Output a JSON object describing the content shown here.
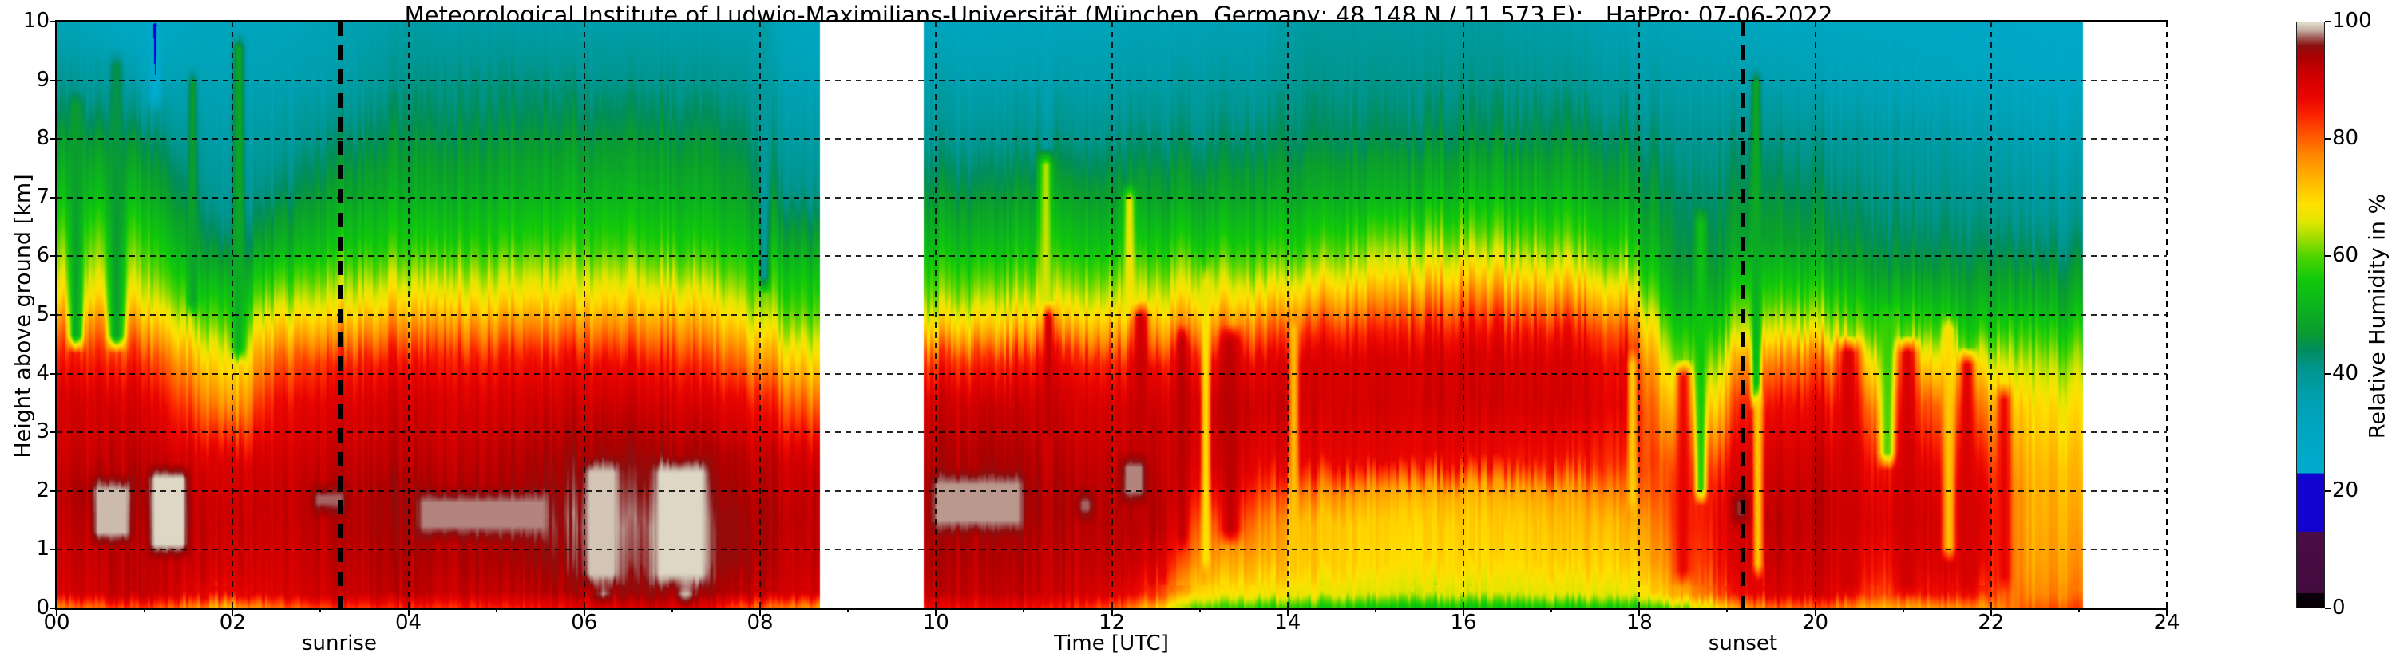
{
  "figure": {
    "title": "Meteorological Institute of Ludwig-Maximilians-Universität (München, Germany; 48.148 N / 11.573 E):   HatPro: 07-06-2022"
  },
  "axes": {
    "xlabel": "Time [UTC]",
    "ylabel": "Height above ground [km]",
    "x_range": [
      0,
      24
    ],
    "y_range": [
      0,
      10
    ],
    "x_ticks": [
      {
        "t": 0,
        "label": "00"
      },
      {
        "t": 2,
        "label": "02"
      },
      {
        "t": 4,
        "label": "04"
      },
      {
        "t": 6,
        "label": "06"
      },
      {
        "t": 8,
        "label": "08"
      },
      {
        "t": 10,
        "label": "10"
      },
      {
        "t": 12,
        "label": "12"
      },
      {
        "t": 14,
        "label": "14"
      },
      {
        "t": 16,
        "label": "16"
      },
      {
        "t": 18,
        "label": "18"
      },
      {
        "t": 20,
        "label": "20"
      },
      {
        "t": 22,
        "label": "22"
      },
      {
        "t": 24,
        "label": "24"
      }
    ],
    "x_minor_ticks": [
      1,
      3,
      5,
      7,
      9,
      11,
      13,
      15,
      17,
      19,
      21,
      23
    ],
    "y_ticks": [
      {
        "h": 0,
        "label": "0"
      },
      {
        "h": 1,
        "label": "1"
      },
      {
        "h": 2,
        "label": "2"
      },
      {
        "h": 3,
        "label": "3"
      },
      {
        "h": 4,
        "label": "4"
      },
      {
        "h": 5,
        "label": "5"
      },
      {
        "h": 6,
        "label": "6"
      },
      {
        "h": 7,
        "label": "7"
      },
      {
        "h": 8,
        "label": "8"
      },
      {
        "h": 9,
        "label": "9"
      },
      {
        "h": 10,
        "label": "10"
      }
    ],
    "grid": {
      "vertical_every_hours": 2,
      "horizontal_every_km": 1,
      "style": "dashed-black"
    }
  },
  "annotations": {
    "sunrise": {
      "label": "sunrise",
      "t": 3.22
    },
    "sunset": {
      "label": "sunset",
      "t": 19.18
    }
  },
  "colorbar": {
    "label": "Relative Humidity in %",
    "range": [
      0,
      100
    ],
    "ticks": [
      {
        "v": 0,
        "label": "0"
      },
      {
        "v": 20,
        "label": "20"
      },
      {
        "v": 40,
        "label": "40"
      },
      {
        "v": 60,
        "label": "60"
      },
      {
        "v": 80,
        "label": "80"
      },
      {
        "v": 100,
        "label": "100"
      }
    ]
  },
  "chart_data": {
    "type": "heatmap",
    "title": "Meteorological Institute of Ludwig-Maximilians-Universität (München, Germany; 48.148 N / 11.573 E):   HatPro: 07-06-2022",
    "xlabel": "Time [UTC]",
    "ylabel": "Height above ground [km]",
    "value_label": "Relative Humidity in %",
    "x_range": [
      0,
      24
    ],
    "y_range": [
      0,
      10
    ],
    "value_range": [
      0,
      100
    ],
    "data_start": 0.0,
    "data_end": 23.05,
    "gap": [
      8.68,
      9.86
    ],
    "sunrise_utc": 3.22,
    "sunset_utc": 19.18,
    "colormap_stops": [
      [
        0,
        "#050005"
      ],
      [
        2.4,
        "#0a000a"
      ],
      [
        2.5,
        "#420b3e"
      ],
      [
        12.9,
        "#4b0d45"
      ],
      [
        13,
        "#1203cf"
      ],
      [
        22.9,
        "#1203cf"
      ],
      [
        23,
        "#00abcd"
      ],
      [
        30,
        "#00a6c2"
      ],
      [
        36,
        "#009fae"
      ],
      [
        41,
        "#00958d"
      ],
      [
        44,
        "#008d5c"
      ],
      [
        47,
        "#0a9c2f"
      ],
      [
        52,
        "#0cb61c"
      ],
      [
        56,
        "#10c90a"
      ],
      [
        60,
        "#4ed400"
      ],
      [
        63,
        "#9cdd00"
      ],
      [
        66,
        "#e3e600"
      ],
      [
        69,
        "#ffe000"
      ],
      [
        73,
        "#ffb600"
      ],
      [
        77,
        "#ff8a00"
      ],
      [
        81,
        "#ff5200"
      ],
      [
        84,
        "#fb2500"
      ],
      [
        87,
        "#ea0500"
      ],
      [
        91,
        "#ce0000"
      ],
      [
        94,
        "#aa0000"
      ],
      [
        96,
        "#8d0f0f"
      ],
      [
        97.3,
        "#9e5555"
      ],
      [
        98.6,
        "#c3ac9f"
      ],
      [
        100,
        "#e2decb"
      ]
    ],
    "heights_km": [
      0,
      0.25,
      0.75,
      1.5,
      2,
      2.5,
      3.5,
      4.25,
      4.75,
      5.25,
      5.75,
      6.25,
      7,
      8,
      9,
      10
    ],
    "samples": [
      {
        "t": 0.0,
        "rh": [
          78,
          90,
          91,
          92,
          92,
          91,
          90,
          85,
          78,
          70,
          65,
          61,
          54,
          47,
          40,
          34
        ]
      },
      {
        "t": 0.5,
        "rh": [
          80,
          91,
          92,
          93,
          95,
          92,
          90,
          84,
          77,
          69,
          64,
          60,
          53,
          46,
          38,
          31
        ]
      },
      {
        "t": 1.0,
        "rh": [
          82,
          92,
          92,
          93,
          94,
          92,
          89,
          83,
          75,
          67,
          62,
          58,
          51,
          44,
          34,
          27
        ]
      },
      {
        "t": 1.6,
        "rh": [
          76,
          88,
          91,
          92,
          91,
          90,
          80,
          72,
          64,
          58,
          52,
          47,
          42,
          38,
          34,
          31
        ]
      },
      {
        "t": 2.0,
        "rh": [
          72,
          87,
          90,
          91,
          90,
          89,
          74,
          66,
          60,
          54,
          48,
          42,
          38,
          36,
          33,
          31
        ]
      },
      {
        "t": 2.5,
        "rh": [
          80,
          90,
          91,
          92,
          92,
          91,
          87,
          80,
          72,
          64,
          57,
          50,
          44,
          39,
          35,
          32
        ]
      },
      {
        "t": 3.2,
        "rh": [
          82,
          91,
          92,
          93,
          93,
          92,
          89,
          84,
          75,
          67,
          61,
          55,
          49,
          43,
          37,
          34
        ]
      },
      {
        "t": 4.0,
        "rh": [
          84,
          92,
          93,
          94,
          94,
          92,
          90,
          85,
          77,
          69,
          62,
          56,
          50,
          45,
          41,
          37
        ]
      },
      {
        "t": 5.0,
        "rh": [
          85,
          92,
          94,
          95,
          94,
          93,
          90,
          85,
          77,
          69,
          63,
          57,
          51,
          46,
          42,
          37
        ]
      },
      {
        "t": 6.2,
        "rh": [
          88,
          94,
          96,
          97,
          96,
          95,
          91,
          86,
          78,
          70,
          64,
          58,
          52,
          46,
          41,
          36
        ]
      },
      {
        "t": 7.2,
        "rh": [
          90,
          95,
          97,
          97,
          96,
          95,
          90,
          84,
          77,
          70,
          63,
          57,
          51,
          46,
          41,
          36
        ]
      },
      {
        "t": 7.9,
        "rh": [
          80,
          92,
          94,
          94,
          93,
          92,
          86,
          76,
          68,
          62,
          57,
          52,
          47,
          43,
          39,
          35
        ]
      },
      {
        "t": 8.4,
        "rh": [
          78,
          91,
          92,
          93,
          92,
          91,
          80,
          70,
          63,
          58,
          54,
          48,
          42,
          38,
          34,
          31
        ]
      },
      {
        "t": 8.68,
        "rh": [
          76,
          90,
          92,
          92,
          92,
          90,
          78,
          68,
          62,
          57,
          53,
          47,
          41,
          37,
          33,
          30
        ]
      },
      {
        "t": 9.87,
        "rh": [
          86,
          92,
          93,
          94,
          94,
          93,
          90,
          82,
          70,
          62,
          57,
          52,
          46,
          40,
          36,
          31
        ]
      },
      {
        "t": 10.6,
        "rh": [
          87,
          92,
          93,
          95,
          95,
          94,
          91,
          83,
          72,
          64,
          58,
          52,
          46,
          40,
          35,
          31
        ]
      },
      {
        "t": 11.5,
        "rh": [
          85,
          91,
          92,
          93,
          93,
          92,
          90,
          85,
          74,
          65,
          59,
          54,
          48,
          41,
          36,
          32
        ]
      },
      {
        "t": 12.1,
        "rh": [
          80,
          89,
          92,
          93,
          93,
          92,
          90,
          84,
          74,
          66,
          60,
          54,
          48,
          42,
          37,
          33
        ]
      },
      {
        "t": 12.6,
        "rh": [
          68,
          80,
          87,
          92,
          92,
          91,
          90,
          85,
          75,
          67,
          61,
          55,
          48,
          42,
          37,
          33
        ]
      },
      {
        "t": 13.1,
        "rh": [
          58,
          68,
          74,
          80,
          86,
          90,
          91,
          86,
          77,
          68,
          62,
          55,
          48,
          42,
          38,
          34
        ]
      },
      {
        "t": 13.6,
        "rh": [
          57,
          68,
          73,
          79,
          84,
          88,
          91,
          87,
          79,
          70,
          62,
          56,
          49,
          43,
          38,
          34
        ]
      },
      {
        "t": 14.2,
        "rh": [
          56,
          67,
          71,
          72,
          78,
          87,
          90,
          89,
          83,
          73,
          64,
          57,
          50,
          44,
          41,
          38
        ]
      },
      {
        "t": 15.1,
        "rh": [
          55,
          66,
          70,
          71,
          75,
          88,
          91,
          90,
          85,
          77,
          68,
          62,
          52,
          45,
          41,
          38
        ]
      },
      {
        "t": 16.2,
        "rh": [
          55,
          66,
          70,
          71,
          74,
          87,
          91,
          90,
          86,
          78,
          69,
          62,
          53,
          45,
          41,
          38
        ]
      },
      {
        "t": 17.2,
        "rh": [
          55,
          66,
          70,
          72,
          75,
          85,
          90,
          89,
          85,
          76,
          67,
          60,
          52,
          45,
          40,
          36
        ]
      },
      {
        "t": 17.9,
        "rh": [
          56,
          67,
          71,
          74,
          79,
          84,
          88,
          86,
          80,
          71,
          63,
          56,
          49,
          44,
          38,
          34
        ]
      },
      {
        "t": 18.4,
        "rh": [
          60,
          73,
          78,
          81,
          82,
          80,
          70,
          62,
          57,
          52,
          48,
          46,
          44,
          41,
          37,
          33
        ]
      },
      {
        "t": 18.9,
        "rh": [
          68,
          81,
          85,
          87,
          86,
          82,
          70,
          62,
          56,
          51,
          47,
          45,
          43,
          40,
          36,
          32
        ]
      },
      {
        "t": 19.15,
        "rh": [
          76,
          87,
          90,
          91,
          91,
          90,
          85,
          76,
          66,
          60,
          54,
          49,
          46,
          42,
          36,
          31
        ]
      },
      {
        "t": 19.6,
        "rh": [
          79,
          89,
          91,
          92,
          91,
          90,
          86,
          77,
          66,
          59,
          53,
          48,
          45,
          41,
          35,
          30
        ]
      },
      {
        "t": 20.1,
        "rh": [
          80,
          90,
          91,
          92,
          92,
          91,
          87,
          79,
          66,
          59,
          52,
          47,
          44,
          40,
          34,
          30
        ]
      },
      {
        "t": 20.7,
        "rh": [
          73,
          82,
          86,
          89,
          88,
          86,
          78,
          68,
          60,
          54,
          48,
          45,
          42,
          39,
          33,
          30
        ]
      },
      {
        "t": 21.3,
        "rh": [
          76,
          87,
          90,
          91,
          90,
          88,
          81,
          69,
          60,
          53,
          47,
          44,
          41,
          38,
          32,
          29
        ]
      },
      {
        "t": 21.9,
        "rh": [
          75,
          84,
          88,
          89,
          88,
          85,
          76,
          65,
          56,
          50,
          46,
          43,
          40,
          36,
          31,
          28
        ]
      },
      {
        "t": 22.4,
        "rh": [
          80,
          77,
          75,
          74,
          74,
          73,
          70,
          64,
          58,
          52,
          47,
          43,
          39,
          35,
          30,
          27
        ]
      },
      {
        "t": 23.05,
        "rh": [
          82,
          78,
          76,
          74,
          73,
          72,
          68,
          62,
          56,
          50,
          46,
          42,
          38,
          34,
          29,
          26
        ]
      }
    ],
    "streaks": [
      {
        "t": 0.22,
        "w": 0.14,
        "ht": 8.6,
        "hb": 4.6,
        "rh": 47
      },
      {
        "t": 0.68,
        "w": 0.16,
        "ht": 9.3,
        "hb": 4.6,
        "rh": 46
      },
      {
        "t": 1.12,
        "w": 0.12,
        "ht": 10.0,
        "hb": 8.7,
        "rh": 22
      },
      {
        "t": 1.55,
        "w": 0.1,
        "ht": 9.0,
        "hb": 5.2,
        "rh": 48
      },
      {
        "t": 2.07,
        "w": 0.13,
        "ht": 9.6,
        "hb": 4.4,
        "rh": 50
      },
      {
        "t": 8.05,
        "w": 0.1,
        "ht": 10.0,
        "hb": 5.6,
        "rh": 38
      },
      {
        "t": 11.25,
        "w": 0.13,
        "ht": 7.6,
        "hb": 5.0,
        "rh": 66
      },
      {
        "t": 11.28,
        "w": 0.11,
        "ht": 5.0,
        "hb": 3.0,
        "rh": 93
      },
      {
        "t": 12.2,
        "w": 0.12,
        "ht": 7.0,
        "hb": 5.1,
        "rh": 68
      },
      {
        "t": 12.33,
        "w": 0.16,
        "ht": 5.0,
        "hb": 1.4,
        "rh": 92
      },
      {
        "t": 12.8,
        "w": 0.1,
        "ht": 4.6,
        "hb": 1.2,
        "rh": 93
      },
      {
        "t": 13.07,
        "w": 0.09,
        "ht": 5.6,
        "hb": 0.8,
        "rh": 67
      },
      {
        "t": 13.35,
        "w": 0.2,
        "ht": 4.6,
        "hb": 1.3,
        "rh": 93
      },
      {
        "t": 14.07,
        "w": 0.09,
        "ht": 4.8,
        "hb": 1.0,
        "rh": 71
      },
      {
        "t": 17.92,
        "w": 0.09,
        "ht": 4.2,
        "hb": 1.8,
        "rh": 70
      },
      {
        "t": 18.5,
        "w": 0.16,
        "ht": 4.0,
        "hb": 0.6,
        "rh": 88
      },
      {
        "t": 18.7,
        "w": 0.11,
        "ht": 6.6,
        "hb": 2.0,
        "rh": 55
      },
      {
        "t": 19.33,
        "w": 0.1,
        "ht": 9.0,
        "hb": 3.6,
        "rh": 50
      },
      {
        "t": 19.35,
        "w": 0.1,
        "ht": 3.6,
        "hb": 0.7,
        "rh": 70
      },
      {
        "t": 20.38,
        "w": 0.22,
        "ht": 4.4,
        "hb": 0.4,
        "rh": 91
      },
      {
        "t": 20.82,
        "w": 0.16,
        "ht": 5.0,
        "hb": 2.6,
        "rh": 58
      },
      {
        "t": 21.05,
        "w": 0.2,
        "ht": 4.4,
        "hb": 0.4,
        "rh": 91
      },
      {
        "t": 21.52,
        "w": 0.13,
        "ht": 4.8,
        "hb": 1.0,
        "rh": 70
      },
      {
        "t": 21.73,
        "w": 0.16,
        "ht": 4.2,
        "hb": 0.4,
        "rh": 90
      },
      {
        "t": 22.15,
        "w": 0.13,
        "ht": 3.6,
        "hb": 0.5,
        "rh": 88
      }
    ],
    "clouds": [
      {
        "t0": 0.35,
        "t1": 0.9,
        "hb": 1.0,
        "ht": 2.3,
        "rh": 99
      },
      {
        "t0": 1.0,
        "t1": 1.55,
        "hb": 0.8,
        "ht": 2.5,
        "rh": 99.8
      },
      {
        "t0": 2.85,
        "t1": 3.35,
        "hb": 1.5,
        "ht": 2.2,
        "rh": 97.5
      },
      {
        "t0": 4.05,
        "t1": 5.65,
        "hb": 1.1,
        "ht": 2.1,
        "rh": 98
      },
      {
        "t0": 5.95,
        "t1": 6.45,
        "hb": 0.3,
        "ht": 2.6,
        "rh": 99.3
      },
      {
        "t0": 6.1,
        "t1": 6.35,
        "hb": 0.0,
        "ht": 0.5,
        "rh": 99
      },
      {
        "t0": 6.75,
        "t1": 7.45,
        "hb": 0.3,
        "ht": 2.6,
        "rh": 99.8
      },
      {
        "t0": 7.0,
        "t1": 7.3,
        "hb": 0.0,
        "ht": 0.5,
        "rh": 99.5
      },
      {
        "t0": 9.9,
        "t1": 11.05,
        "hb": 1.2,
        "ht": 2.4,
        "rh": 98.3
      },
      {
        "t0": 11.55,
        "t1": 11.85,
        "hb": 1.4,
        "ht": 2.1,
        "rh": 97.5
      },
      {
        "t0": 12.05,
        "t1": 12.45,
        "hb": 1.7,
        "ht": 2.7,
        "rh": 98
      },
      {
        "t0": 19.0,
        "t1": 19.3,
        "hb": 1.3,
        "ht": 2.1,
        "rh": 96.5
      }
    ]
  }
}
